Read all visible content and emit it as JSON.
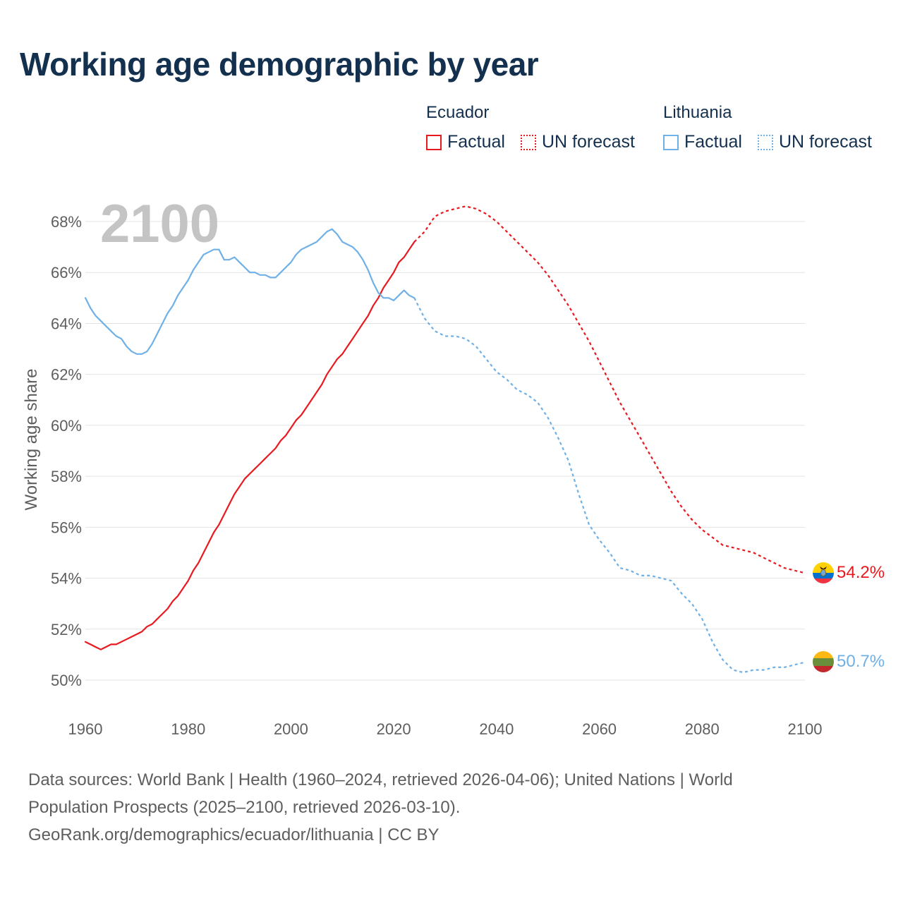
{
  "title": "Working age demographic by year",
  "legend": {
    "groups": [
      {
        "country": "Ecuador",
        "color": "#e8191f",
        "items": [
          {
            "label": "Factual",
            "style": "solid"
          },
          {
            "label": "UN forecast",
            "style": "dotted"
          }
        ]
      },
      {
        "country": "Lithuania",
        "color": "#6fb0e6",
        "items": [
          {
            "label": "Factual",
            "style": "solid"
          },
          {
            "label": "UN forecast",
            "style": "dotted"
          }
        ]
      }
    ]
  },
  "year_watermark": "2100",
  "footer": {
    "line1": "Data sources: World Bank | Health (1960–2024, retrieved 2026-04-06); United Nations | World",
    "line2": "Population Prospects (2025–2100, retrieved 2026-03-10).",
    "line3": "GeoRank.org/demographics/ecuador/lithuania | CC BY"
  },
  "chart_data": {
    "type": "line",
    "title": "Working age demographic by year",
    "xlabel": "",
    "ylabel": "Working age share",
    "xlim": [
      1960,
      2100
    ],
    "ylim": [
      50,
      68
    ],
    "x_ticks": [
      1960,
      1980,
      2000,
      2020,
      2040,
      2060,
      2080,
      2100
    ],
    "y_ticks": [
      50,
      52,
      54,
      56,
      58,
      60,
      62,
      64,
      66,
      68
    ],
    "y_tick_labels": [
      "50%",
      "52%",
      "54%",
      "56%",
      "58%",
      "60%",
      "62%",
      "64%",
      "66%",
      "68%"
    ],
    "grid": true,
    "series": [
      {
        "name": "Ecuador (Factual)",
        "country": "Ecuador",
        "kind": "factual",
        "color": "#e8191f",
        "x": [
          1960,
          1961,
          1962,
          1963,
          1964,
          1965,
          1966,
          1967,
          1968,
          1969,
          1970,
          1971,
          1972,
          1973,
          1974,
          1975,
          1976,
          1977,
          1978,
          1979,
          1980,
          1981,
          1982,
          1983,
          1984,
          1985,
          1986,
          1987,
          1988,
          1989,
          1990,
          1991,
          1992,
          1993,
          1994,
          1995,
          1996,
          1997,
          1998,
          1999,
          2000,
          2001,
          2002,
          2003,
          2004,
          2005,
          2006,
          2007,
          2008,
          2009,
          2010,
          2011,
          2012,
          2013,
          2014,
          2015,
          2016,
          2017,
          2018,
          2019,
          2020,
          2021,
          2022,
          2023,
          2024
        ],
        "y": [
          51.5,
          51.4,
          51.3,
          51.2,
          51.3,
          51.4,
          51.4,
          51.5,
          51.6,
          51.7,
          51.8,
          51.9,
          52.1,
          52.2,
          52.4,
          52.6,
          52.8,
          53.1,
          53.3,
          53.6,
          53.9,
          54.3,
          54.6,
          55.0,
          55.4,
          55.8,
          56.1,
          56.5,
          56.9,
          57.3,
          57.6,
          57.9,
          58.1,
          58.3,
          58.5,
          58.7,
          58.9,
          59.1,
          59.4,
          59.6,
          59.9,
          60.2,
          60.4,
          60.7,
          61.0,
          61.3,
          61.6,
          62.0,
          62.3,
          62.6,
          62.8,
          63.1,
          63.4,
          63.7,
          64.0,
          64.3,
          64.7,
          65.0,
          65.4,
          65.7,
          66.0,
          66.4,
          66.6,
          66.9,
          67.2
        ]
      },
      {
        "name": "Ecuador (UN forecast)",
        "country": "Ecuador",
        "kind": "forecast",
        "color": "#e8191f",
        "x": [
          2024,
          2026,
          2028,
          2030,
          2032,
          2034,
          2036,
          2038,
          2040,
          2042,
          2044,
          2046,
          2048,
          2050,
          2052,
          2054,
          2056,
          2058,
          2060,
          2062,
          2064,
          2066,
          2068,
          2070,
          2072,
          2074,
          2076,
          2078,
          2080,
          2082,
          2084,
          2086,
          2088,
          2090,
          2092,
          2094,
          2096,
          2098,
          2100
        ],
        "y": [
          67.2,
          67.6,
          68.2,
          68.4,
          68.5,
          68.6,
          68.5,
          68.3,
          68.0,
          67.6,
          67.2,
          66.8,
          66.4,
          65.9,
          65.3,
          64.7,
          64.0,
          63.3,
          62.5,
          61.7,
          60.9,
          60.2,
          59.5,
          58.8,
          58.1,
          57.4,
          56.8,
          56.3,
          55.9,
          55.6,
          55.3,
          55.2,
          55.1,
          55.0,
          54.8,
          54.6,
          54.4,
          54.3,
          54.2
        ]
      },
      {
        "name": "Lithuania (Factual)",
        "country": "Lithuania",
        "kind": "factual",
        "color": "#6fb0e6",
        "x": [
          1960,
          1961,
          1962,
          1963,
          1964,
          1965,
          1966,
          1967,
          1968,
          1969,
          1970,
          1971,
          1972,
          1973,
          1974,
          1975,
          1976,
          1977,
          1978,
          1979,
          1980,
          1981,
          1982,
          1983,
          1984,
          1985,
          1986,
          1987,
          1988,
          1989,
          1990,
          1991,
          1992,
          1993,
          1994,
          1995,
          1996,
          1997,
          1998,
          1999,
          2000,
          2001,
          2002,
          2003,
          2004,
          2005,
          2006,
          2007,
          2008,
          2009,
          2010,
          2011,
          2012,
          2013,
          2014,
          2015,
          2016,
          2017,
          2018,
          2019,
          2020,
          2021,
          2022,
          2023,
          2024
        ],
        "y": [
          65.0,
          64.6,
          64.3,
          64.1,
          63.9,
          63.7,
          63.5,
          63.4,
          63.1,
          62.9,
          62.8,
          62.8,
          62.9,
          63.2,
          63.6,
          64.0,
          64.4,
          64.7,
          65.1,
          65.4,
          65.7,
          66.1,
          66.4,
          66.7,
          66.8,
          66.9,
          66.9,
          66.5,
          66.5,
          66.6,
          66.4,
          66.2,
          66.0,
          66.0,
          65.9,
          65.9,
          65.8,
          65.8,
          66.0,
          66.2,
          66.4,
          66.7,
          66.9,
          67.0,
          67.1,
          67.2,
          67.4,
          67.6,
          67.7,
          67.5,
          67.2,
          67.1,
          67.0,
          66.8,
          66.5,
          66.1,
          65.6,
          65.2,
          65.0,
          65.0,
          64.9,
          65.1,
          65.3,
          65.1,
          65.0
        ]
      },
      {
        "name": "Lithuania (UN forecast)",
        "country": "Lithuania",
        "kind": "forecast",
        "color": "#6fb0e6",
        "x": [
          2024,
          2026,
          2028,
          2030,
          2032,
          2034,
          2036,
          2038,
          2040,
          2042,
          2044,
          2046,
          2048,
          2050,
          2052,
          2054,
          2056,
          2058,
          2060,
          2062,
          2064,
          2066,
          2068,
          2070,
          2072,
          2074,
          2076,
          2078,
          2080,
          2082,
          2084,
          2086,
          2088,
          2090,
          2092,
          2094,
          2096,
          2098,
          2100
        ],
        "y": [
          65.0,
          64.2,
          63.7,
          63.5,
          63.5,
          63.4,
          63.1,
          62.6,
          62.1,
          61.8,
          61.4,
          61.2,
          60.9,
          60.3,
          59.5,
          58.6,
          57.3,
          56.1,
          55.5,
          55.0,
          54.4,
          54.3,
          54.1,
          54.1,
          54.0,
          53.9,
          53.4,
          53.0,
          52.4,
          51.5,
          50.8,
          50.4,
          50.3,
          50.4,
          50.4,
          50.5,
          50.5,
          50.6,
          50.7
        ]
      }
    ],
    "end_labels": [
      {
        "country": "Ecuador",
        "value": 54.2,
        "label": "54.2%",
        "color": "#e8191f"
      },
      {
        "country": "Lithuania",
        "value": 50.7,
        "label": "50.7%",
        "color": "#6fb0e6"
      }
    ]
  }
}
